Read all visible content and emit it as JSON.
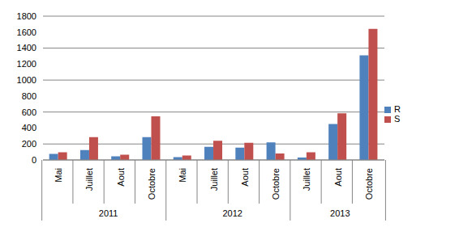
{
  "chart_data": {
    "type": "bar",
    "categories": [
      "Mai",
      "Juillet",
      "Aout",
      "Octobre",
      "Mai",
      "Juillet",
      "Aout",
      "Octobre",
      "Juillet",
      "Aout",
      "Octobre"
    ],
    "x_groups": [
      {
        "label": "2011",
        "size": 4
      },
      {
        "label": "2012",
        "size": 4
      },
      {
        "label": "2013",
        "size": 3
      }
    ],
    "series": [
      {
        "name": "R",
        "color": "#4f81bd",
        "values": [
          75,
          125,
          45,
          285,
          35,
          165,
          155,
          220,
          30,
          450,
          1310
        ]
      },
      {
        "name": "S",
        "color": "#c0504d",
        "values": [
          95,
          285,
          65,
          545,
          55,
          240,
          215,
          80,
          95,
          585,
          1640
        ]
      }
    ],
    "ylim": [
      0,
      1800
    ],
    "yticks": [
      0,
      200,
      400,
      600,
      800,
      1000,
      1200,
      1400,
      1600,
      1800
    ],
    "grid": true,
    "legend": "right"
  }
}
